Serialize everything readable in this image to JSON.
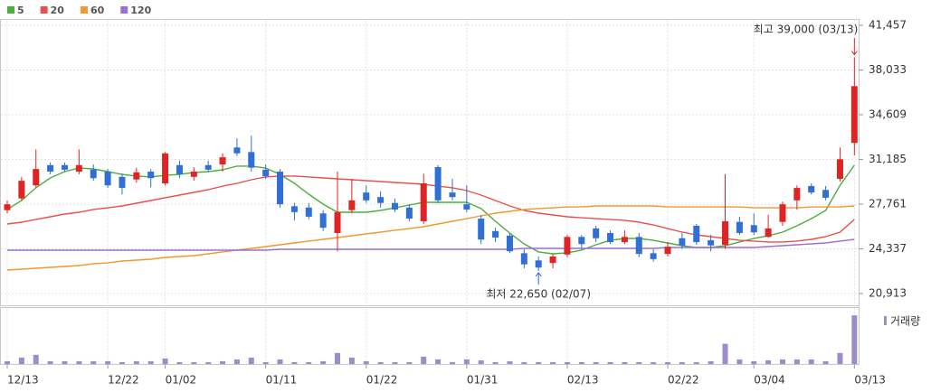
{
  "chart_data": {
    "type": "candlestick",
    "categories": [
      "12/13",
      null,
      null,
      null,
      null,
      null,
      null,
      "12/22",
      null,
      null,
      null,
      "01/02",
      null,
      null,
      null,
      null,
      null,
      null,
      "01/11",
      null,
      null,
      null,
      null,
      null,
      null,
      "01/22",
      null,
      null,
      null,
      null,
      null,
      null,
      "01/31",
      null,
      null,
      null,
      null,
      null,
      null,
      "02/13",
      null,
      null,
      null,
      null,
      null,
      null,
      "02/22",
      null,
      null,
      null,
      null,
      null,
      "03/04",
      null,
      null,
      null,
      null,
      null,
      null,
      "03/13"
    ],
    "open": [
      27300,
      28200,
      29200,
      30750,
      30750,
      30250,
      30400,
      30250,
      29850,
      29650,
      30250,
      29350,
      30750,
      29850,
      30750,
      30800,
      32100,
      31750,
      30400,
      30250,
      27600,
      27500,
      27050,
      25550,
      27300,
      28650,
      28300,
      27850,
      27500,
      26450,
      30600,
      28650,
      27750,
      26650,
      25700,
      25350,
      24000,
      23450,
      23250,
      23900,
      25250,
      25900,
      25550,
      24850,
      25250,
      24000,
      23950,
      25150,
      26100,
      25000,
      24650,
      26400,
      26150,
      25250,
      26400,
      28050,
      29150,
      28850,
      29700,
      32450
    ],
    "high": [
      28050,
      29850,
      31950,
      30950,
      30950,
      31950,
      30800,
      30450,
      30100,
      30550,
      30450,
      31750,
      31100,
      30600,
      31100,
      31650,
      32800,
      33000,
      30800,
      30450,
      27850,
      27850,
      27300,
      30250,
      29700,
      29200,
      28750,
      28200,
      27750,
      30100,
      30750,
      29700,
      29200,
      26950,
      25950,
      25550,
      24300,
      23750,
      23950,
      25400,
      25400,
      26100,
      25750,
      25750,
      25550,
      24300,
      24850,
      25550,
      26250,
      25400,
      30050,
      26800,
      27050,
      26950,
      27950,
      29200,
      29350,
      29150,
      32100,
      39000
    ],
    "low": [
      27050,
      28050,
      29050,
      30050,
      30250,
      30050,
      29550,
      29000,
      28500,
      29400,
      29050,
      29200,
      29750,
      29550,
      30250,
      30250,
      31450,
      30250,
      29700,
      27500,
      26500,
      26600,
      25700,
      24150,
      27050,
      27850,
      27500,
      27150,
      26450,
      26250,
      27850,
      28050,
      27150,
      24700,
      24850,
      24000,
      22850,
      22650,
      22850,
      23700,
      24350,
      24850,
      24700,
      24700,
      23700,
      23350,
      23750,
      24350,
      24650,
      24150,
      24350,
      25400,
      25400,
      25200,
      26100,
      27350,
      28500,
      28050,
      29500,
      31500
    ],
    "close": [
      27750,
      29550,
      30450,
      30250,
      30400,
      30750,
      29750,
      29200,
      29000,
      30200,
      29750,
      31650,
      30050,
      30250,
      30400,
      31350,
      31650,
      30550,
      29900,
      27750,
      27150,
      26800,
      25950,
      27150,
      28050,
      28050,
      27850,
      27350,
      26650,
      29350,
      28050,
      28300,
      27350,
      25050,
      25200,
      24150,
      23150,
      22900,
      23750,
      25250,
      24700,
      25150,
      24850,
      25250,
      23950,
      23550,
      24500,
      24600,
      24850,
      24600,
      26450,
      25550,
      25600,
      25900,
      27750,
      29000,
      28650,
      28250,
      31200,
      36800
    ],
    "up_color": "#e02424",
    "down_color": "#2f6fd6",
    "series": [
      {
        "name": "5",
        "color": "#4cae3c",
        "values": [
          27350,
          28040,
          29010,
          29770,
          30250,
          30530,
          30460,
          30250,
          30040,
          29910,
          29840,
          29970,
          30040,
          30180,
          30250,
          30390,
          30670,
          30670,
          30530,
          30040,
          29350,
          28520,
          27760,
          27140,
          27140,
          27140,
          27280,
          27480,
          27690,
          27900,
          27900,
          27900,
          27900,
          27420,
          26450,
          25550,
          24720,
          24100,
          23960,
          24030,
          24230,
          24650,
          24990,
          25130,
          25130,
          24990,
          24790,
          24580,
          24440,
          24440,
          24580,
          24860,
          25130,
          25340,
          25620,
          26100,
          26650,
          27280,
          29210,
          30740
        ]
      },
      {
        "name": "20",
        "color": "#e85050",
        "values": [
          26240,
          26380,
          26590,
          26790,
          27000,
          27140,
          27350,
          27480,
          27620,
          27830,
          28040,
          28250,
          28450,
          28660,
          28870,
          29140,
          29350,
          29630,
          29840,
          29910,
          29910,
          29840,
          29770,
          29700,
          29630,
          29560,
          29490,
          29420,
          29350,
          29280,
          29140,
          29010,
          28800,
          28450,
          28040,
          27620,
          27280,
          27070,
          26930,
          26790,
          26720,
          26650,
          26590,
          26520,
          26380,
          26170,
          25890,
          25620,
          25410,
          25270,
          25130,
          24990,
          24930,
          24860,
          24860,
          24930,
          25060,
          25270,
          25620,
          26590
        ]
      },
      {
        "name": "60",
        "color": "#f2982c",
        "values": [
          22710,
          22780,
          22850,
          22920,
          22990,
          23060,
          23200,
          23260,
          23400,
          23470,
          23540,
          23680,
          23750,
          23820,
          23960,
          24100,
          24230,
          24370,
          24510,
          24650,
          24790,
          24930,
          25060,
          25200,
          25340,
          25480,
          25620,
          25760,
          25890,
          26030,
          26240,
          26450,
          26650,
          26860,
          27070,
          27210,
          27350,
          27420,
          27480,
          27550,
          27550,
          27620,
          27620,
          27620,
          27620,
          27620,
          27550,
          27550,
          27550,
          27550,
          27550,
          27550,
          27480,
          27480,
          27480,
          27480,
          27550,
          27550,
          27550,
          27620
        ]
      },
      {
        "name": "120",
        "color": "#9b6fd3",
        "values": [
          24230,
          24230,
          24230,
          24230,
          24230,
          24230,
          24230,
          24230,
          24230,
          24230,
          24230,
          24230,
          24230,
          24230,
          24230,
          24230,
          24230,
          24230,
          24230,
          24300,
          24300,
          24300,
          24300,
          24300,
          24300,
          24300,
          24300,
          24300,
          24300,
          24300,
          24300,
          24300,
          24300,
          24300,
          24300,
          24300,
          24370,
          24370,
          24370,
          24370,
          24370,
          24370,
          24370,
          24370,
          24370,
          24370,
          24440,
          24440,
          24440,
          24440,
          24440,
          24440,
          24440,
          24510,
          24580,
          24650,
          24720,
          24790,
          24930,
          25060
        ]
      }
    ],
    "ylim": [
      20000,
      41900
    ],
    "yticks": [
      {
        "value": 20913,
        "label": "20,913"
      },
      {
        "value": 24337,
        "label": "24,337"
      },
      {
        "value": 27761,
        "label": "27,761"
      },
      {
        "value": 31185,
        "label": "31,185"
      },
      {
        "value": 34609,
        "label": "34,609"
      },
      {
        "value": 38033,
        "label": "38,033"
      },
      {
        "value": 41457,
        "label": "41,457"
      }
    ],
    "grid": true,
    "annotations": [
      {
        "text": "최고 39,000 (03/13)",
        "color": "#e02424"
      },
      {
        "text": "최저 22,650 (02/07)",
        "color": "#2f6fd6"
      }
    ],
    "volume": {
      "name": "거래량",
      "color": "#9d8bd0",
      "ylim": [
        0,
        60
      ],
      "values": [
        3,
        7,
        10,
        3,
        3,
        3,
        3,
        3,
        2,
        3,
        3,
        6,
        2,
        2,
        2,
        3,
        5,
        7,
        2,
        5,
        2,
        2,
        3,
        12,
        7,
        3,
        2,
        2,
        2,
        8,
        5,
        2,
        5,
        4,
        2,
        3,
        2,
        2,
        2,
        2,
        2,
        2,
        2,
        2,
        2,
        2,
        2,
        2,
        2,
        3,
        22,
        5,
        3,
        4,
        5,
        5,
        5,
        3,
        12,
        53
      ]
    }
  }
}
